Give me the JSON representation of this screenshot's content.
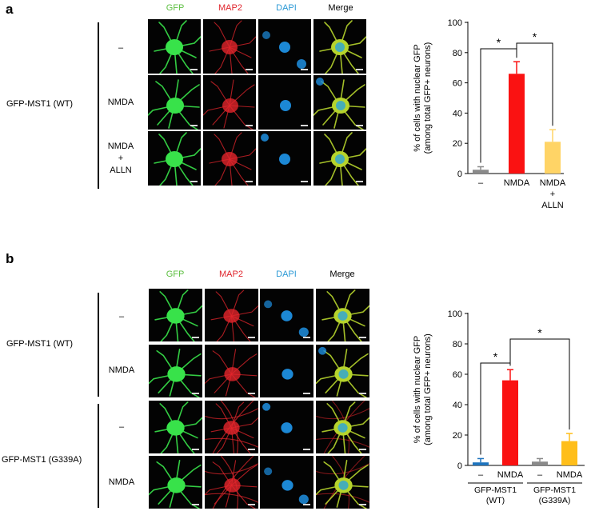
{
  "panel_a": {
    "letter": "a",
    "channels": [
      "GFP",
      "MAP2",
      "DAPI",
      "Merge"
    ],
    "channel_colors": [
      "#5cbf40",
      "#e0242c",
      "#2d9ad6",
      "#000000"
    ],
    "group_label": "GFP-MST1 (WT)",
    "row_labels": [
      [
        "–"
      ],
      [
        "NMDA"
      ],
      [
        "NMDA",
        "+",
        "ALLN"
      ]
    ]
  },
  "panel_b": {
    "letter": "b",
    "channels": [
      "GFP",
      "MAP2",
      "DAPI",
      "Merge"
    ],
    "channel_colors": [
      "#5cbf40",
      "#e0242c",
      "#2d9ad6",
      "#000000"
    ],
    "groups": [
      {
        "label": "GFP-MST1 (WT)",
        "rows": [
          "–",
          "NMDA"
        ]
      },
      {
        "label": "GFP-MST1 (G339A)",
        "rows": [
          "–",
          "NMDA"
        ]
      }
    ]
  },
  "chart_data": [
    {
      "type": "bar",
      "ylabel": "% of cells with nuclear GFP\n(among total GFP+ neurons)",
      "ylim": [
        0,
        100
      ],
      "yticks": [
        0,
        20,
        40,
        60,
        80,
        100
      ],
      "categories": [
        "–",
        "NMDA",
        "NMDA\n+\nALLN"
      ],
      "values": [
        2.5,
        66,
        21
      ],
      "errors": [
        2,
        8,
        8
      ],
      "colors": [
        "#8a8a8a",
        "#fa1212",
        "#ffd466"
      ],
      "significance": [
        {
          "from": 0,
          "to": 1,
          "label": "*"
        },
        {
          "from": 1,
          "to": 2,
          "label": "*"
        }
      ]
    },
    {
      "type": "bar",
      "ylabel": "% of cells with nuclear GFP\n(among total GFP+ neurons)",
      "ylim": [
        0,
        100
      ],
      "yticks": [
        0,
        20,
        40,
        60,
        80,
        100
      ],
      "categories": [
        "–",
        "NMDA",
        "–",
        "NMDA"
      ],
      "values": [
        2,
        56,
        2.5,
        16
      ],
      "errors": [
        2.5,
        7,
        2,
        5
      ],
      "colors": [
        "#1f74be",
        "#fa1212",
        "#8a8a8a",
        "#ffbe1a"
      ],
      "groups": [
        {
          "label": "GFP-MST1\n(WT)",
          "span": [
            0,
            1
          ]
        },
        {
          "label": "GFP-MST1\n(G339A)",
          "span": [
            2,
            3
          ]
        }
      ],
      "significance": [
        {
          "from": 0,
          "to": 1,
          "label": "*"
        },
        {
          "from": 1,
          "to": 3,
          "label": "*"
        }
      ]
    }
  ]
}
